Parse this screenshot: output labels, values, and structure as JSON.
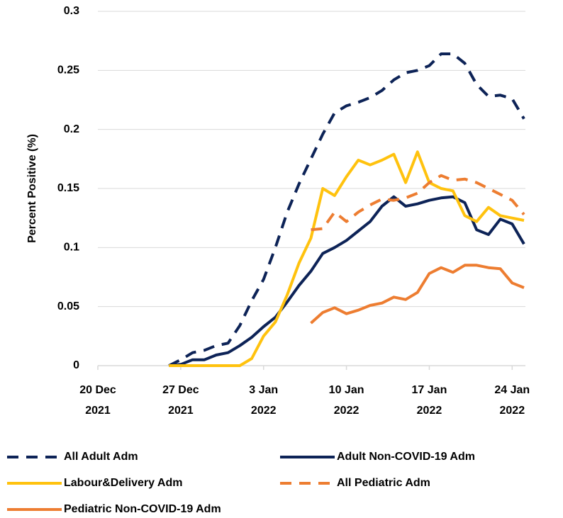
{
  "chart_data": {
    "type": "line",
    "y_label": "Percent Positive (%)",
    "x": [
      "2021-12-26",
      "2021-12-27",
      "2021-12-28",
      "2021-12-29",
      "2021-12-30",
      "2021-12-31",
      "2022-01-01",
      "2022-01-02",
      "2022-01-03",
      "2022-01-04",
      "2022-01-05",
      "2022-01-06",
      "2022-01-07",
      "2022-01-08",
      "2022-01-09",
      "2022-01-10",
      "2022-01-11",
      "2022-01-12",
      "2022-01-13",
      "2022-01-14",
      "2022-01-15",
      "2022-01-16",
      "2022-01-17",
      "2022-01-18",
      "2022-01-19",
      "2022-01-20",
      "2022-01-21",
      "2022-01-22",
      "2022-01-23",
      "2022-01-24",
      "2022-01-25"
    ],
    "xlim": [
      "2021-12-20",
      "2022-01-25"
    ],
    "xticks": [
      {
        "value": "2021-12-20",
        "label": "20 Dec 2021"
      },
      {
        "value": "2021-12-27",
        "label": "27 Dec 2021"
      },
      {
        "value": "2022-01-03",
        "label": "3 Jan 2022"
      },
      {
        "value": "2022-01-10",
        "label": "10 Jan 2022"
      },
      {
        "value": "2022-01-17",
        "label": "17 Jan 2022"
      },
      {
        "value": "2022-01-24",
        "label": "24 Jan 2022"
      }
    ],
    "ylim": [
      0,
      0.3
    ],
    "yticks": [
      0,
      0.05,
      0.1,
      0.15,
      0.2,
      0.25,
      0.3
    ],
    "grid": true,
    "series": [
      {
        "name": "All Adult Adm",
        "color": "#0d2357",
        "style": "dashed",
        "values": [
          0,
          0.005,
          0.011,
          0.013,
          0.017,
          0.019,
          0.034,
          0.055,
          0.073,
          0.1,
          0.13,
          0.154,
          0.175,
          0.196,
          0.214,
          0.22,
          0.223,
          0.227,
          0.233,
          0.242,
          0.248,
          0.25,
          0.254,
          0.264,
          0.264,
          0.256,
          0.238,
          0.228,
          0.229,
          0.226,
          0.209
        ]
      },
      {
        "name": "Adult Non-COVID-19 Adm",
        "color": "#0d2357",
        "style": "solid",
        "values": [
          0,
          0.001,
          0.005,
          0.005,
          0.009,
          0.011,
          0.017,
          0.024,
          0.033,
          0.041,
          0.054,
          0.068,
          0.08,
          0.095,
          0.1,
          0.106,
          0.114,
          0.122,
          0.135,
          0.143,
          0.135,
          0.137,
          0.14,
          0.142,
          0.143,
          0.138,
          0.115,
          0.111,
          0.124,
          0.12,
          0.103
        ]
      },
      {
        "name": "Labour&Delivery Adm",
        "color": "#ffc20e",
        "style": "solid",
        "values": [
          0,
          0,
          0,
          0,
          0,
          0,
          0,
          0.006,
          0.025,
          0.037,
          0.06,
          0.087,
          0.108,
          0.15,
          0.144,
          0.16,
          0.174,
          0.17,
          0.174,
          0.179,
          0.155,
          0.181,
          0.155,
          0.15,
          0.148,
          0.127,
          0.122,
          0.134,
          0.127,
          0.125,
          0.123
        ]
      },
      {
        "name": "All Pediatric Adm",
        "color": "#ed7d31",
        "style": "dashed",
        "values": [
          null,
          null,
          null,
          null,
          null,
          null,
          null,
          null,
          null,
          null,
          null,
          null,
          0.115,
          0.116,
          0.13,
          0.122,
          0.13,
          0.136,
          0.141,
          0.14,
          0.142,
          0.146,
          0.155,
          0.161,
          0.157,
          0.158,
          0.155,
          0.15,
          0.145,
          0.14,
          0.128
        ]
      },
      {
        "name": "Pediatric Non-COVID-19 Adm",
        "color": "#ed7d31",
        "style": "solid",
        "values": [
          null,
          null,
          null,
          null,
          null,
          null,
          null,
          null,
          null,
          null,
          null,
          null,
          0.036,
          0.045,
          0.049,
          0.044,
          0.047,
          0.051,
          0.053,
          0.058,
          0.056,
          0.062,
          0.078,
          0.083,
          0.079,
          0.085,
          0.085,
          0.083,
          0.082,
          0.07,
          0.066
        ]
      }
    ]
  }
}
